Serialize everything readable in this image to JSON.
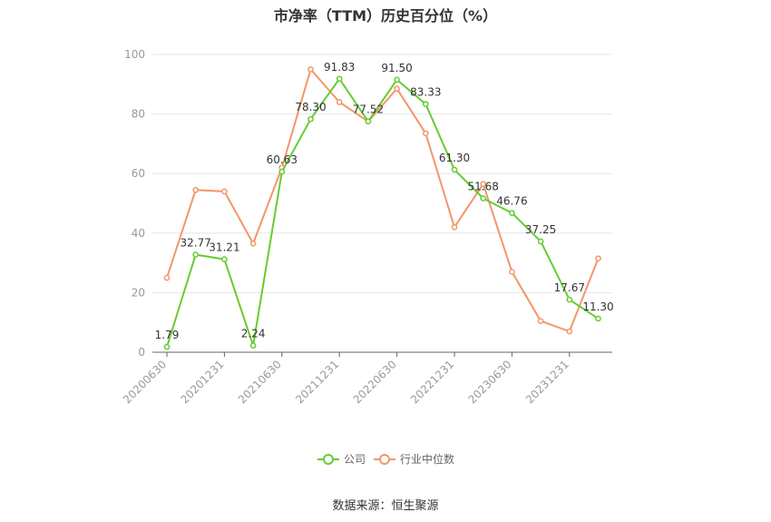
{
  "chart_data": {
    "type": "line",
    "title": "市净率（TTM）历史百分位（%）",
    "source": "数据来源：恒生聚源",
    "ylim": [
      0,
      100
    ],
    "yticks": [
      "0",
      "20",
      "40",
      "60",
      "80",
      "100"
    ],
    "tick_labels": [
      "20200630",
      "20201231",
      "20210630",
      "20211231",
      "20220630",
      "20221231",
      "20230630",
      "20231231"
    ],
    "grid": true,
    "legend_position": "bottom",
    "colors": {
      "company": "#66cc33",
      "industry": "#f4956a"
    },
    "series": [
      {
        "name": "公司",
        "values": [
          1.79,
          32.77,
          31.21,
          2.24,
          60.63,
          78.3,
          91.83,
          77.52,
          91.5,
          83.33,
          61.3,
          51.68,
          46.76,
          37.25,
          17.67,
          11.3
        ],
        "labels": [
          "1.79",
          "32.77",
          "31.21",
          "2.24",
          "60.63",
          "78.30",
          "91.83",
          "77.52",
          "91.50",
          "83.33",
          "61.30",
          "51.68",
          "46.76",
          "37.25",
          "17.67",
          "11.30"
        ]
      },
      {
        "name": "行业中位数",
        "values": [
          25,
          54.5,
          54,
          36.5,
          62,
          95,
          84,
          77.5,
          88.5,
          73.5,
          42,
          56.5,
          27,
          10.5,
          7,
          31.5
        ]
      }
    ]
  }
}
